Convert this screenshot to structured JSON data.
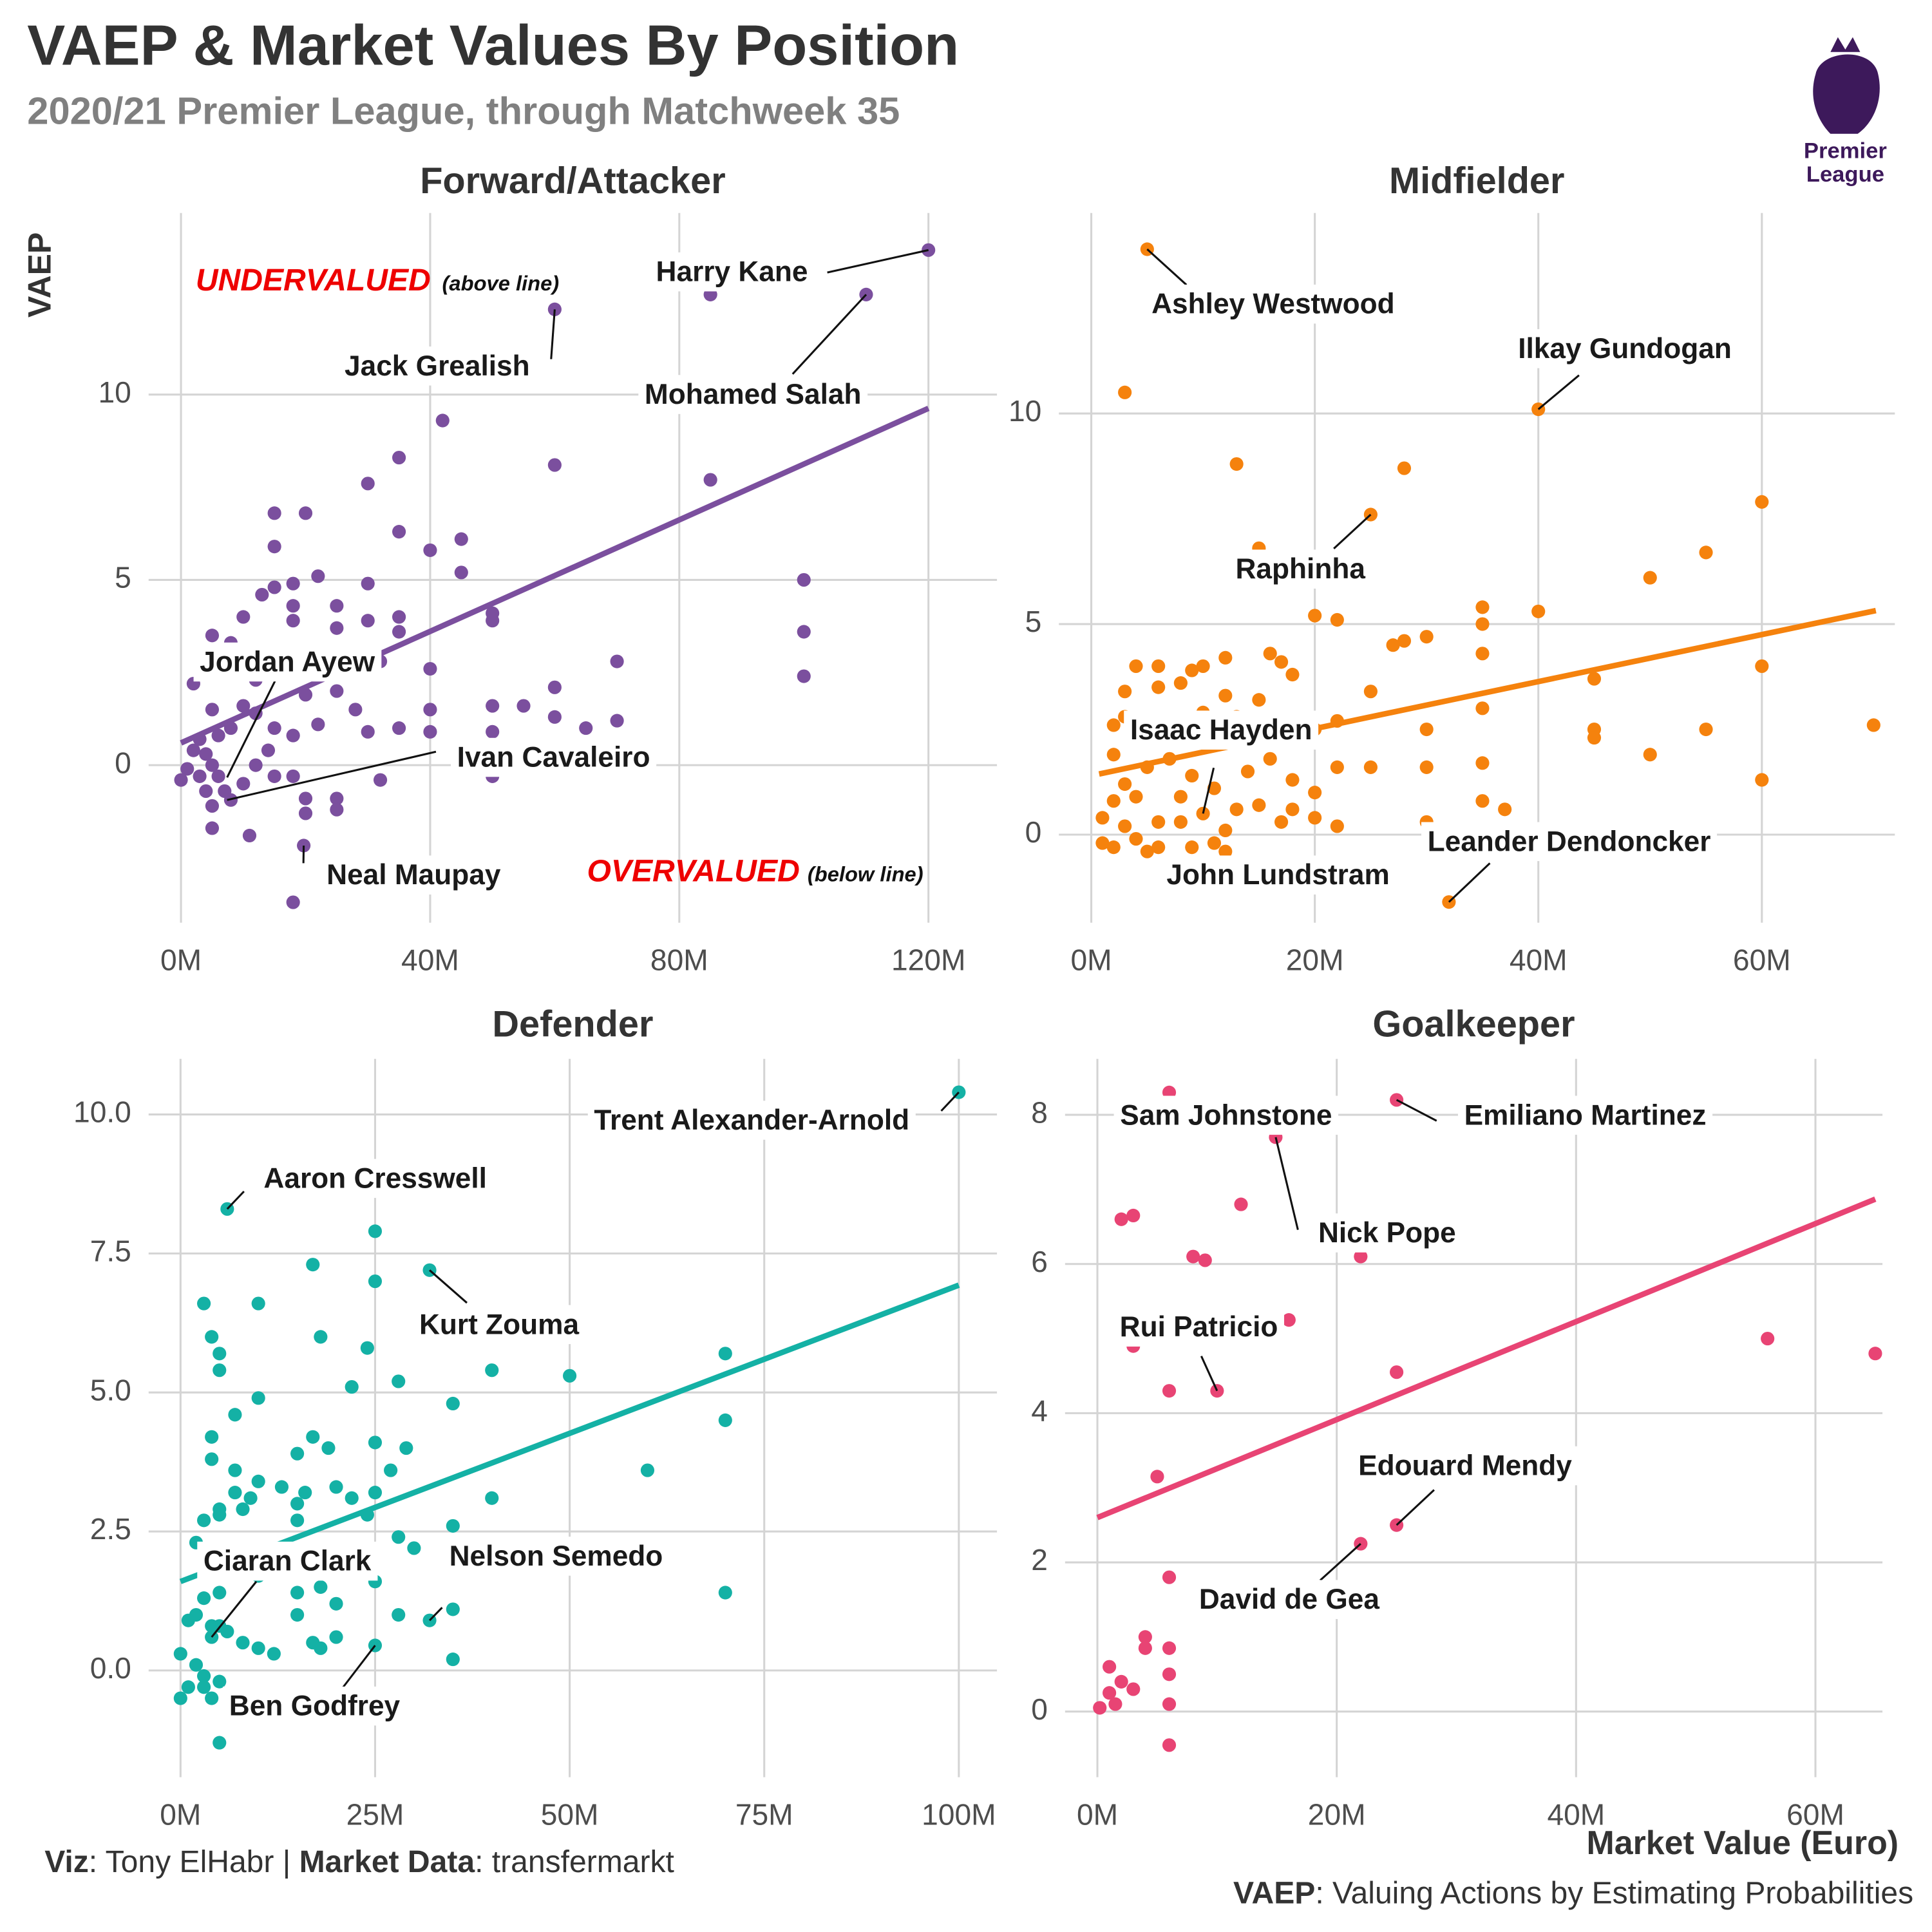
{
  "title": "VAEP & Market Values By Position",
  "subtitle": "2020/21 Premier League, through Matchweek 35",
  "y_label": "VAEP",
  "x_label": "Market Value (Euro)",
  "caption_left": [
    "Viz",
    ": Tony ElHabr | ",
    "Market Data",
    ": transfermarkt"
  ],
  "caption_right": [
    "VAEP",
    ": Valuing Actions by Estimating Probabilities"
  ],
  "logo": [
    "Premier",
    "League"
  ],
  "chart_data": [
    {
      "type": "scatter",
      "title": "Forward/Attacker",
      "color": "#7b4f9e",
      "xlim": [
        -5.2,
        131
      ],
      "ylim": [
        -4.25,
        14.9
      ],
      "xticks": [
        {
          "value": 0,
          "label": "0M"
        },
        {
          "value": 40,
          "label": "40M"
        },
        {
          "value": 80,
          "label": "80M"
        },
        {
          "value": 120,
          "label": "120M"
        }
      ],
      "yticks": [
        0,
        5,
        10
      ],
      "x": [
        120,
        110,
        60,
        85,
        42,
        60,
        85,
        30,
        35,
        35,
        40,
        45,
        45,
        100,
        100,
        100,
        15,
        20,
        15,
        22,
        18,
        15,
        13,
        10,
        18,
        18,
        25,
        30,
        30,
        35,
        35,
        50,
        50,
        70,
        40,
        32,
        25,
        20,
        12,
        8,
        5,
        2,
        8,
        50,
        55,
        60,
        60,
        65,
        70,
        50,
        40,
        40,
        35,
        30,
        28,
        25,
        20,
        22,
        18,
        15,
        12,
        10,
        8,
        5,
        6,
        3,
        2,
        4,
        3,
        0,
        1,
        5,
        6,
        7,
        10,
        12,
        15,
        14,
        18,
        20,
        20,
        25,
        25,
        32,
        50,
        5,
        4,
        8,
        11,
        5,
        19.7,
        18
      ],
      "values": [
        13.9,
        12.7,
        12.3,
        12.7,
        9.3,
        8.1,
        7.7,
        7.6,
        8.3,
        6.3,
        5.8,
        6.1,
        5.2,
        5.0,
        3.6,
        2.4,
        6.8,
        6.8,
        5.9,
        5.1,
        4.9,
        4.8,
        4.6,
        4.0,
        4.3,
        3.9,
        4.3,
        4.9,
        3.9,
        4.0,
        3.6,
        4.1,
        3.9,
        2.8,
        2.6,
        2.8,
        3.7,
        3.0,
        2.3,
        2.5,
        3.5,
        2.2,
        3.3,
        1.6,
        1.6,
        2.1,
        1.3,
        1.0,
        1.2,
        0.9,
        1.5,
        0.9,
        1.0,
        0.9,
        1.5,
        2.0,
        1.9,
        1.1,
        0.8,
        1.0,
        1.4,
        1.6,
        1.0,
        1.5,
        0.8,
        0.7,
        0.4,
        0.3,
        -0.3,
        -0.4,
        -0.1,
        0.0,
        -0.3,
        -0.7,
        -0.5,
        0.0,
        -0.3,
        0.4,
        -0.3,
        -0.9,
        -1.3,
        -0.9,
        -1.2,
        -0.4,
        -0.3,
        -1.1,
        -0.7,
        -0.94,
        -1.9,
        -1.7,
        -2.17,
        -3.7
      ],
      "trend": {
        "x": [
          0,
          120
        ],
        "values": [
          0.6,
          9.63
        ]
      },
      "annotations": [
        {
          "text": "Harry Kane",
          "x": 120,
          "y": 13.9
        },
        {
          "text": "Jack Grealish",
          "x": 60,
          "y": 12.3
        },
        {
          "text": "Mohamed Salah",
          "x": 110,
          "y": 12.7
        },
        {
          "text": "Jordan Ayew",
          "x": 7.4,
          "y": -0.33
        },
        {
          "text": "Ivan Cavaleiro",
          "x": 7.4,
          "y": -0.94
        },
        {
          "text": "Neal Maupay",
          "x": 19.7,
          "y": -2.17
        }
      ],
      "undervalued_label": "UNDERVALUED",
      "undervalued_note": "(above line)",
      "overvalued_label": "OVERVALUED",
      "overvalued_note": "(below line)"
    },
    {
      "type": "scatter",
      "title": "Midfielder",
      "color": "#f5820d",
      "xlim": [
        -2.9,
        71.9
      ],
      "ylim": [
        -2.09,
        14.76
      ],
      "xticks": [
        {
          "value": 0,
          "label": "0M"
        },
        {
          "value": 20,
          "label": "20M"
        },
        {
          "value": 40,
          "label": "40M"
        },
        {
          "value": 60,
          "label": "60M"
        }
      ],
      "yticks": [
        0,
        5,
        10
      ],
      "x": [
        5,
        40,
        3,
        13,
        28,
        25,
        15,
        60,
        55,
        50,
        20,
        22,
        40,
        35,
        35,
        30,
        28,
        27,
        35,
        45,
        60,
        70,
        25,
        35,
        22,
        20,
        30,
        45,
        45,
        55,
        50,
        60,
        35,
        30,
        25,
        22,
        20,
        18,
        18,
        20,
        22,
        35,
        37,
        30,
        16,
        17,
        18,
        12,
        10,
        9,
        8,
        6,
        6,
        4,
        3,
        3,
        2,
        5,
        7,
        10,
        12,
        15,
        13,
        16,
        14,
        11,
        9,
        8,
        5,
        3,
        2,
        1,
        3,
        4,
        2,
        1,
        5,
        6,
        8,
        9,
        10,
        11,
        12,
        13,
        15,
        17,
        4,
        7,
        2,
        6,
        12,
        32
      ],
      "values": [
        13.9,
        10.1,
        10.5,
        8.8,
        8.7,
        7.6,
        6.8,
        7.9,
        6.7,
        6.1,
        5.2,
        5.1,
        5.3,
        5.4,
        5.0,
        4.7,
        4.6,
        4.5,
        4.3,
        3.7,
        4.0,
        2.6,
        3.4,
        3.0,
        2.7,
        2.5,
        2.5,
        2.5,
        2.3,
        2.5,
        1.9,
        1.3,
        1.7,
        1.6,
        1.6,
        1.6,
        1.0,
        1.3,
        0.6,
        0.4,
        0.2,
        0.8,
        0.6,
        0.3,
        4.3,
        4.1,
        3.8,
        4.2,
        4.0,
        3.9,
        3.6,
        4.0,
        3.5,
        4.0,
        3.4,
        2.8,
        2.6,
        2.3,
        2.5,
        2.9,
        3.3,
        3.2,
        2.8,
        1.8,
        1.5,
        1.1,
        1.4,
        0.9,
        1.6,
        1.2,
        0.8,
        0.4,
        0.2,
        -0.1,
        -0.3,
        -0.2,
        -0.4,
        0.3,
        0.3,
        -0.3,
        0.5,
        -0.2,
        0.1,
        0.6,
        0.7,
        0.3,
        0.9,
        1.8,
        1.9,
        -0.3,
        -0.4,
        -1.6
      ],
      "trend": {
        "x": [
          0.7,
          70.2
        ],
        "values": [
          1.44,
          5.32
        ]
      },
      "annotations": [
        {
          "text": "Ashley Westwood",
          "x": 5,
          "y": 13.9
        },
        {
          "text": "Ilkay Gundogan",
          "x": 40,
          "y": 10.1
        },
        {
          "text": "Raphinha",
          "x": 25,
          "y": 7.6
        },
        {
          "text": "Isaac Hayden",
          "x": 10,
          "y": 0.5
        },
        {
          "text": "John Lundstram",
          "x": 9,
          "y": -0.3
        },
        {
          "text": "Leander Dendoncker",
          "x": 32,
          "y": -1.6
        }
      ]
    },
    {
      "type": "scatter",
      "title": "Defender",
      "color": "#14b1a5",
      "xlim": [
        -4.1,
        104.9
      ],
      "ylim": [
        -1.92,
        11.0
      ],
      "xticks": [
        {
          "value": 0,
          "label": "0M"
        },
        {
          "value": 25,
          "label": "25M"
        },
        {
          "value": 50,
          "label": "50M"
        },
        {
          "value": 75,
          "label": "75M"
        },
        {
          "value": 100,
          "label": "100M"
        }
      ],
      "yticks": [
        {
          "value": 0,
          "label": "0.0"
        },
        2.5,
        {
          "value": 5,
          "label": "5.0"
        },
        7.5,
        {
          "value": 10,
          "label": "10.0"
        }
      ],
      "x": [
        100,
        6,
        25,
        17,
        25,
        32,
        3,
        10,
        18,
        4,
        5,
        5,
        24,
        28,
        22,
        40,
        50,
        70,
        70,
        35,
        10,
        7,
        15,
        17,
        19,
        25,
        29,
        60,
        40,
        4,
        4,
        7,
        7,
        9,
        10,
        13,
        15,
        16,
        20,
        22,
        25,
        27,
        5,
        3,
        5,
        8,
        15,
        24,
        28,
        30,
        35,
        2,
        6,
        10,
        13,
        15,
        18,
        20,
        22,
        25,
        28,
        35,
        32,
        70,
        5,
        3,
        2,
        1,
        4,
        6,
        8,
        10,
        12,
        15,
        17,
        18,
        20,
        25,
        35,
        0,
        2,
        3,
        5,
        1,
        0,
        3,
        4,
        5,
        5,
        4
      ],
      "values": [
        10.4,
        8.3,
        7.9,
        7.3,
        7.0,
        7.2,
        6.6,
        6.6,
        6.0,
        6.0,
        5.7,
        5.4,
        5.8,
        5.2,
        5.1,
        5.4,
        5.3,
        5.7,
        4.5,
        4.8,
        4.9,
        4.6,
        3.9,
        4.2,
        4.0,
        4.1,
        4.0,
        3.6,
        3.1,
        4.2,
        3.8,
        3.6,
        3.2,
        3.1,
        3.4,
        3.3,
        3.0,
        3.2,
        3.3,
        3.1,
        3.2,
        3.6,
        2.9,
        2.7,
        2.8,
        2.9,
        2.7,
        2.8,
        2.4,
        2.2,
        2.6,
        2.3,
        1.8,
        1.7,
        1.9,
        1.4,
        1.5,
        1.2,
        1.9,
        1.6,
        1.0,
        1.1,
        0.9,
        1.4,
        1.4,
        1.3,
        1.0,
        0.9,
        0.8,
        0.7,
        0.5,
        0.4,
        0.3,
        1.0,
        0.5,
        0.4,
        0.6,
        0.45,
        0.2,
        0.3,
        0.1,
        -0.1,
        -0.2,
        -0.3,
        -0.5,
        -0.3,
        -0.5,
        -1.3,
        0.8,
        0.6
      ],
      "trend": {
        "x": [
          0,
          100
        ],
        "values": [
          1.6,
          6.93
        ]
      },
      "annotations": [
        {
          "text": "Trent Alexander-Arnold",
          "x": 100,
          "y": 10.4
        },
        {
          "text": "Aaron Cresswell",
          "x": 6,
          "y": 8.3
        },
        {
          "text": "Kurt Zouma",
          "x": 32,
          "y": 7.2
        },
        {
          "text": "Ciaran Clark",
          "x": 4,
          "y": 0.6
        },
        {
          "text": "Nelson Semedo",
          "x": 32,
          "y": 0.9
        },
        {
          "text": "Ben Godfrey",
          "x": 25,
          "y": 0.45
        }
      ]
    },
    {
      "type": "scatter",
      "title": "Goalkeeper",
      "color": "#e84474",
      "xlim": [
        -2.7,
        65.6
      ],
      "ylim": [
        -0.88,
        8.75
      ],
      "xticks": [
        {
          "value": 0,
          "label": "0M"
        },
        {
          "value": 20,
          "label": "20M"
        },
        {
          "value": 40,
          "label": "40M"
        },
        {
          "value": 60,
          "label": "60M"
        }
      ],
      "yticks": [
        0,
        2,
        4,
        6,
        8
      ],
      "x": [
        6,
        25,
        14.9,
        12,
        2,
        3,
        8,
        9,
        22,
        15,
        16,
        3,
        10,
        6,
        25,
        56,
        65,
        5,
        25,
        22,
        6,
        4,
        4,
        6,
        6,
        1,
        2,
        3,
        1,
        1.5,
        0.2,
        6,
        6
      ],
      "values": [
        8.3,
        8.2,
        7.7,
        6.8,
        6.6,
        6.65,
        6.1,
        6.05,
        6.1,
        5.3,
        5.25,
        4.9,
        4.3,
        4.3,
        4.55,
        5.0,
        4.8,
        3.15,
        2.5,
        2.25,
        1.8,
        1.0,
        0.85,
        0.85,
        0.5,
        0.6,
        0.4,
        0.3,
        0.25,
        0.1,
        0.05,
        0.1,
        -0.45
      ],
      "trend": {
        "x": [
          0,
          65
        ],
        "values": [
          2.6,
          6.87
        ]
      },
      "annotations": [
        {
          "text": "Sam Johnstone",
          "x": 6,
          "y": 8.3
        },
        {
          "text": "Emiliano Martinez",
          "x": 25,
          "y": 8.2
        },
        {
          "text": "Nick Pope",
          "x": 14.9,
          "y": 7.7
        },
        {
          "text": "Rui Patricio",
          "x": 10,
          "y": 4.3
        },
        {
          "text": "Edouard Mendy",
          "x": 25,
          "y": 2.5
        },
        {
          "text": "David de Gea",
          "x": 22,
          "y": 2.25
        }
      ]
    }
  ]
}
